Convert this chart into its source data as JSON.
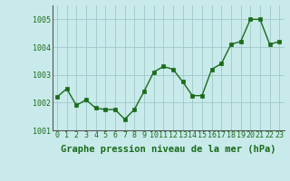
{
  "x": [
    0,
    1,
    2,
    3,
    4,
    5,
    6,
    7,
    8,
    9,
    10,
    11,
    12,
    13,
    14,
    15,
    16,
    17,
    18,
    19,
    20,
    21,
    22,
    23
  ],
  "y": [
    1002.2,
    1002.5,
    1001.9,
    1002.1,
    1001.8,
    1001.75,
    1001.75,
    1001.4,
    1001.75,
    1002.4,
    1003.1,
    1003.3,
    1003.2,
    1002.75,
    1002.25,
    1002.25,
    1003.2,
    1003.4,
    1004.1,
    1004.2,
    1005.0,
    1005.0,
    1004.1,
    1004.2
  ],
  "line_color": "#1a6b1a",
  "marker_color": "#1a6b1a",
  "bg_color": "#c8eaea",
  "grid_color": "#a0c8c8",
  "axis_label_color": "#1a6b1a",
  "tick_label_color": "#1a6b1a",
  "xlabel": "Graphe pression niveau de la mer (hPa)",
  "ylim": [
    1001.0,
    1005.5
  ],
  "yticks": [
    1001,
    1002,
    1003,
    1004,
    1005
  ],
  "xticks": [
    0,
    1,
    2,
    3,
    4,
    5,
    6,
    7,
    8,
    9,
    10,
    11,
    12,
    13,
    14,
    15,
    16,
    17,
    18,
    19,
    20,
    21,
    22,
    23
  ],
  "xlabel_fontsize": 7.5,
  "tick_fontsize": 6.0,
  "marker_size": 2.5,
  "line_width": 1.0
}
